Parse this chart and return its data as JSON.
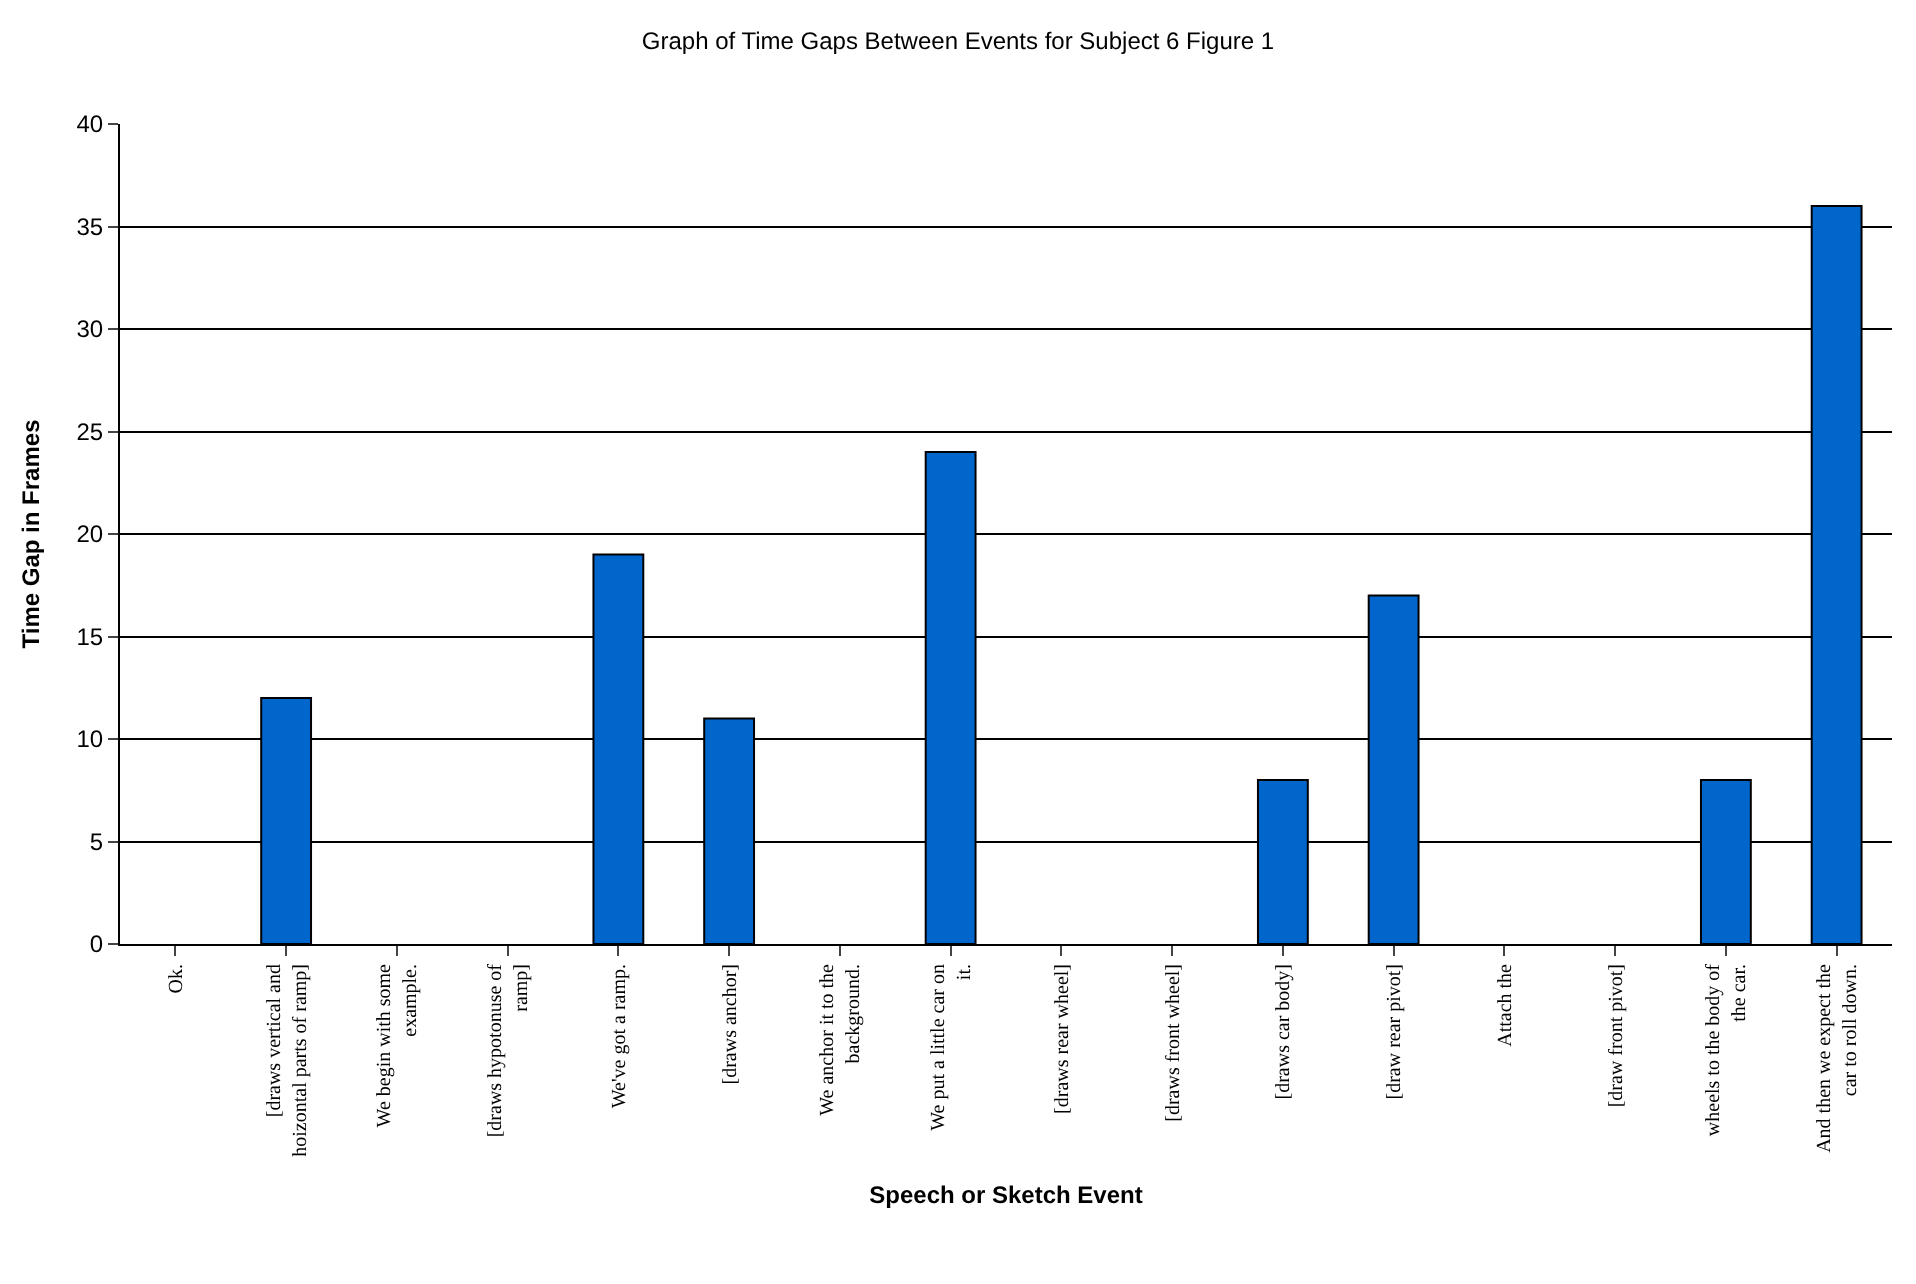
{
  "chart_data": {
    "type": "bar",
    "title": "Graph of Time Gaps Between Events for Subject 6 Figure 1",
    "xlabel": "Speech or Sketch Event",
    "ylabel": "Time Gap in Frames",
    "categories": [
      "Ok.",
      "[draws vertical and hoizontal parts of ramp]",
      "We begin with some example.",
      "[draws hypotonuse of ramp]",
      "We've got a ramp.",
      "[draws anchor]",
      "We anchor it to the background.",
      "We put a little car on it.",
      "[draws rear wheel]",
      "[draws front wheel]",
      "[draws car body]",
      "[draw rear pivot]",
      "Attach the",
      "[draw front pivot]",
      "wheels to the body of the car.",
      "And then we expect the car to roll down."
    ],
    "values": [
      0,
      12,
      0,
      0,
      19,
      11,
      0,
      24,
      0,
      0,
      8,
      17,
      0,
      0,
      8,
      36
    ],
    "color": "#0066cc",
    "ylim": [
      0,
      40
    ],
    "yticks": [
      0,
      5,
      10,
      15,
      20,
      25,
      30,
      35,
      40
    ],
    "grid": "y"
  }
}
